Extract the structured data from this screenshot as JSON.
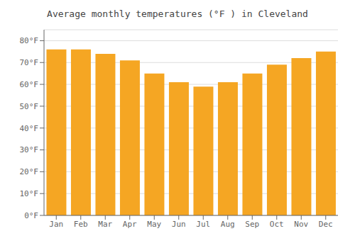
{
  "chart_data": {
    "type": "bar",
    "title": "Average monthly temperatures (°F ) in Cleveland",
    "categories": [
      "Jan",
      "Feb",
      "Mar",
      "Apr",
      "May",
      "Jun",
      "Jul",
      "Aug",
      "Sep",
      "Oct",
      "Nov",
      "Dec"
    ],
    "values": [
      76,
      76,
      74,
      71,
      65,
      61,
      59,
      61,
      65,
      69,
      72,
      75
    ],
    "color": "#F5A623",
    "ylim": [
      0,
      85
    ],
    "yticks": [
      {
        "value": 0,
        "label": "0°F"
      },
      {
        "value": 10,
        "label": "10°F"
      },
      {
        "value": 20,
        "label": "20°F"
      },
      {
        "value": 30,
        "label": "30°F"
      },
      {
        "value": 40,
        "label": "40°F"
      },
      {
        "value": 50,
        "label": "50°F"
      },
      {
        "value": 60,
        "label": "60°F"
      },
      {
        "value": 70,
        "label": "70°F"
      },
      {
        "value": 80,
        "label": "80°F"
      }
    ],
    "grid": true
  }
}
